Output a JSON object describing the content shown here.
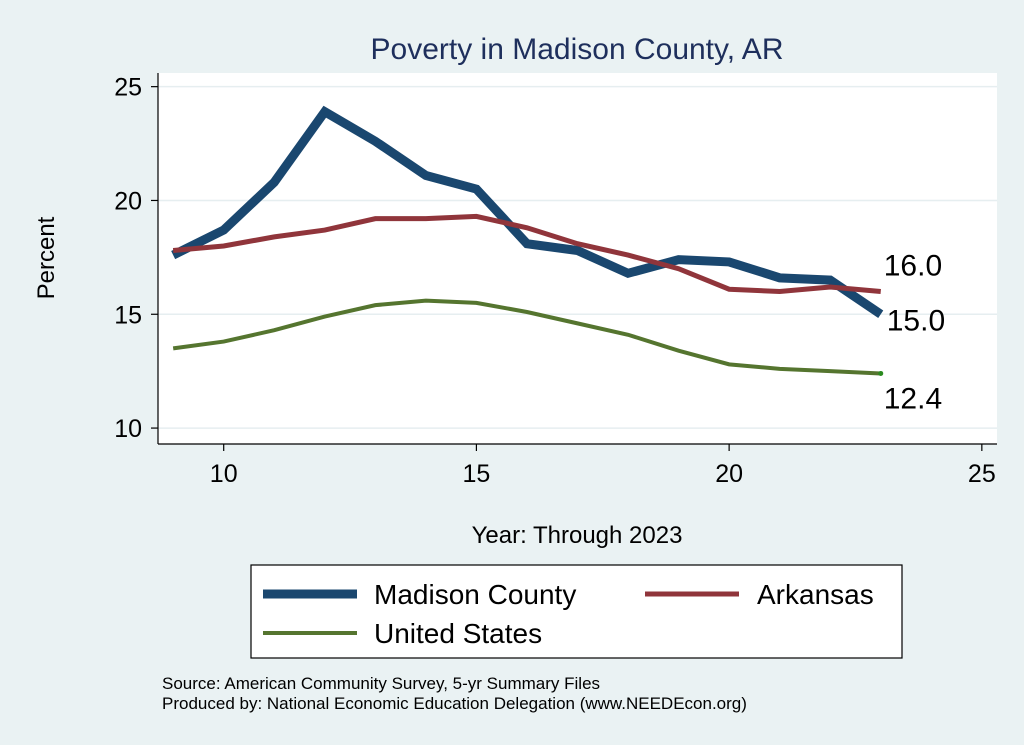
{
  "chart_data": {
    "type": "line",
    "title": "Poverty in Madison County, AR",
    "xlabel": "Year: Through 2023",
    "ylabel": "Percent",
    "xlim": [
      8.7,
      25.3
    ],
    "ylim": [
      9.3,
      25.6
    ],
    "x_ticks": [
      10,
      15,
      20,
      25
    ],
    "y_ticks": [
      10,
      15,
      20,
      25
    ],
    "grid": true,
    "legend_position": "bottom",
    "x": [
      9,
      10,
      11,
      12,
      13,
      14,
      15,
      16,
      17,
      18,
      19,
      20,
      21,
      22,
      23
    ],
    "series": [
      {
        "name": "Madison County",
        "color": "#1a476f",
        "values": [
          17.6,
          18.7,
          20.8,
          23.9,
          22.6,
          21.1,
          20.5,
          18.1,
          17.8,
          16.8,
          17.4,
          17.3,
          16.6,
          16.5,
          15.0
        ],
        "end_label": "15.0"
      },
      {
        "name": "Arkansas",
        "color": "#90353b",
        "values": [
          17.8,
          18.0,
          18.4,
          18.7,
          19.2,
          19.2,
          19.3,
          18.8,
          18.1,
          17.6,
          17.0,
          16.1,
          16.0,
          16.2,
          16.0
        ],
        "end_label": "16.0"
      },
      {
        "name": "United States",
        "color": "#55752f",
        "values": [
          13.5,
          13.8,
          14.3,
          14.9,
          15.4,
          15.6,
          15.5,
          15.1,
          14.6,
          14.1,
          13.4,
          12.8,
          12.6,
          12.5,
          12.4
        ],
        "end_label": "12.4"
      }
    ]
  },
  "footer": {
    "source": "Source: American Community Survey, 5-yr Summary Files",
    "producer": "Produced by: National Economic Education Delegation (www.NEEDEcon.org)"
  }
}
